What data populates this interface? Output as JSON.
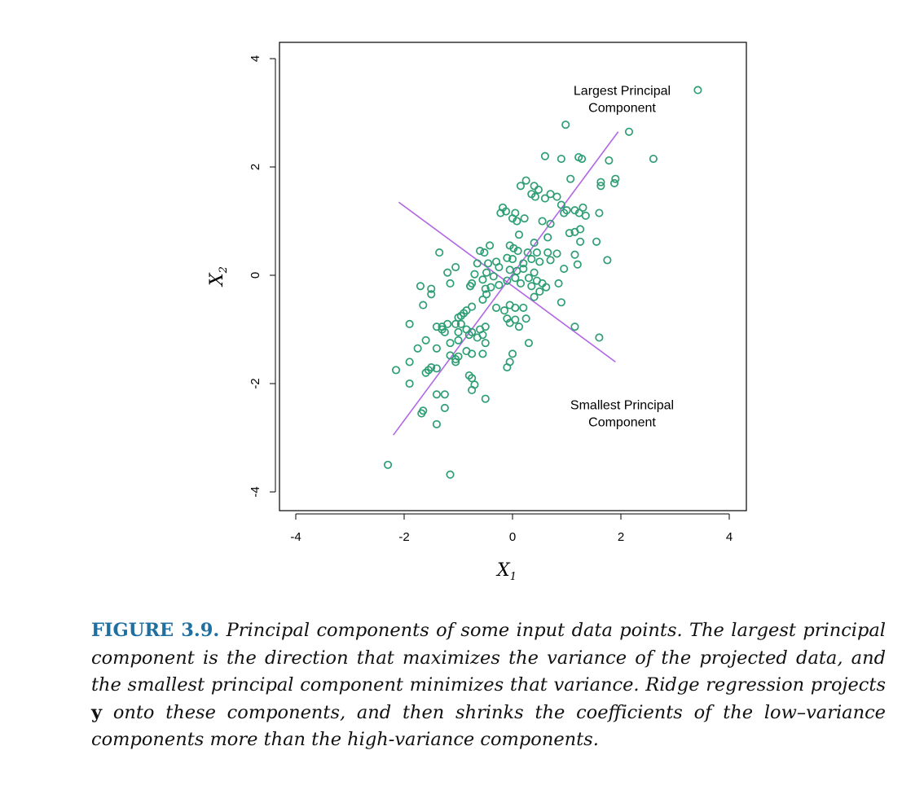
{
  "chart_data": {
    "type": "scatter",
    "xlabel": "X",
    "xlabel_sub": "1",
    "ylabel": "X",
    "ylabel_sub": "2",
    "xlim": [
      -4.3,
      4.3
    ],
    "ylim": [
      -4.4,
      4.3
    ],
    "xticks": [
      "-4",
      "-2",
      "0",
      "2",
      "4"
    ],
    "xtick_values": [
      -4,
      -2,
      0,
      2,
      4
    ],
    "yticks": [
      "-4",
      "-2",
      "0",
      "2",
      "4"
    ],
    "ytick_values": [
      -4,
      -2,
      0,
      2,
      4
    ],
    "point_color": "#2e9e74",
    "line_color": "#b266e6",
    "lines": [
      {
        "name": "Largest Principal Component",
        "x": [
          -2.2,
          1.95
        ],
        "y": [
          -2.95,
          2.65
        ]
      },
      {
        "name": "Smallest Principal Component",
        "x": [
          -2.1,
          1.9
        ],
        "y": [
          1.35,
          -1.6
        ]
      }
    ],
    "annotations": [
      {
        "lines": [
          "Largest Principal",
          "Component"
        ],
        "x": 1.0,
        "y": 3.3
      },
      {
        "lines": [
          "Smallest Principal",
          "Component"
        ],
        "x": 1.0,
        "y": -2.5
      }
    ],
    "points": [
      [
        3.42,
        3.42
      ],
      [
        2.15,
        2.65
      ],
      [
        2.6,
        2.15
      ],
      [
        0.98,
        2.78
      ],
      [
        0.6,
        2.2
      ],
      [
        0.9,
        2.15
      ],
      [
        1.22,
        2.18
      ],
      [
        1.28,
        2.15
      ],
      [
        1.78,
        2.12
      ],
      [
        1.07,
        1.78
      ],
      [
        1.63,
        1.72
      ],
      [
        1.9,
        1.78
      ],
      [
        1.88,
        1.7
      ],
      [
        1.63,
        1.65
      ],
      [
        0.15,
        1.65
      ],
      [
        0.25,
        1.75
      ],
      [
        0.4,
        1.65
      ],
      [
        0.48,
        1.58
      ],
      [
        0.7,
        1.5
      ],
      [
        0.82,
        1.45
      ],
      [
        0.6,
        1.42
      ],
      [
        0.35,
        1.5
      ],
      [
        0.42,
        1.45
      ],
      [
        0.9,
        1.3
      ],
      [
        1.0,
        1.2
      ],
      [
        0.95,
        1.15
      ],
      [
        1.15,
        1.2
      ],
      [
        1.3,
        1.25
      ],
      [
        1.35,
        1.1
      ],
      [
        1.23,
        1.15
      ],
      [
        1.6,
        1.15
      ],
      [
        -0.18,
        1.25
      ],
      [
        -0.22,
        1.15
      ],
      [
        -0.12,
        1.18
      ],
      [
        0.05,
        1.15
      ],
      [
        0.22,
        1.05
      ],
      [
        0.08,
        1.0
      ],
      [
        0.0,
        1.05
      ],
      [
        0.55,
        1.0
      ],
      [
        0.7,
        0.95
      ],
      [
        0.12,
        0.75
      ],
      [
        1.05,
        0.78
      ],
      [
        1.15,
        0.8
      ],
      [
        1.25,
        0.85
      ],
      [
        1.25,
        0.62
      ],
      [
        1.55,
        0.62
      ],
      [
        0.65,
        0.7
      ],
      [
        0.4,
        0.6
      ],
      [
        -0.05,
        0.55
      ],
      [
        -0.42,
        0.55
      ],
      [
        0.02,
        0.5
      ],
      [
        0.1,
        0.45
      ],
      [
        0.28,
        0.42
      ],
      [
        0.45,
        0.42
      ],
      [
        0.65,
        0.42
      ],
      [
        0.82,
        0.4
      ],
      [
        1.15,
        0.38
      ],
      [
        1.75,
        0.28
      ],
      [
        1.2,
        0.2
      ],
      [
        0.95,
        0.12
      ],
      [
        0.7,
        0.28
      ],
      [
        0.5,
        0.25
      ],
      [
        0.35,
        0.3
      ],
      [
        0.2,
        0.22
      ],
      [
        0.0,
        0.3
      ],
      [
        -0.1,
        0.32
      ],
      [
        -0.3,
        0.25
      ],
      [
        -0.45,
        0.22
      ],
      [
        -0.52,
        0.42
      ],
      [
        -0.6,
        0.45
      ],
      [
        -0.65,
        0.22
      ],
      [
        -0.25,
        0.15
      ],
      [
        -0.05,
        0.1
      ],
      [
        0.08,
        0.08
      ],
      [
        0.2,
        0.12
      ],
      [
        0.3,
        -0.05
      ],
      [
        0.4,
        0.05
      ],
      [
        0.45,
        -0.1
      ],
      [
        0.55,
        -0.15
      ],
      [
        0.62,
        -0.22
      ],
      [
        0.85,
        -0.15
      ],
      [
        0.5,
        -0.3
      ],
      [
        0.4,
        -0.4
      ],
      [
        0.35,
        -0.2
      ],
      [
        0.15,
        -0.15
      ],
      [
        0.05,
        -0.05
      ],
      [
        -0.1,
        -0.1
      ],
      [
        -0.25,
        -0.18
      ],
      [
        -0.4,
        -0.22
      ],
      [
        -0.55,
        -0.08
      ],
      [
        -0.7,
        0.02
      ],
      [
        -0.48,
        0.05
      ],
      [
        -0.35,
        -0.02
      ],
      [
        -0.5,
        -0.25
      ],
      [
        -0.48,
        -0.35
      ],
      [
        -0.55,
        -0.45
      ],
      [
        -0.78,
        -0.2
      ],
      [
        -0.75,
        -0.15
      ],
      [
        -0.05,
        -0.55
      ],
      [
        0.05,
        -0.6
      ],
      [
        0.2,
        -0.6
      ],
      [
        -0.15,
        -0.65
      ],
      [
        0.9,
        -0.5
      ],
      [
        -0.75,
        -0.58
      ],
      [
        -0.85,
        -0.65
      ],
      [
        -0.9,
        -0.7
      ],
      [
        -0.95,
        -0.75
      ],
      [
        -1.0,
        -0.78
      ],
      [
        -0.1,
        -0.8
      ],
      [
        0.05,
        -0.82
      ],
      [
        0.25,
        -0.8
      ],
      [
        -0.05,
        -0.88
      ],
      [
        0.12,
        -0.95
      ],
      [
        1.15,
        -0.95
      ],
      [
        -0.5,
        -0.95
      ],
      [
        -0.6,
        -1.0
      ],
      [
        -0.85,
        -1.0
      ],
      [
        -0.75,
        -1.05
      ],
      [
        -0.95,
        -0.9
      ],
      [
        -1.05,
        -0.9
      ],
      [
        -1.2,
        -0.9
      ],
      [
        -1.3,
        -0.95
      ],
      [
        -1.4,
        -0.95
      ],
      [
        -0.55,
        -1.1
      ],
      [
        -0.65,
        -1.15
      ],
      [
        -0.8,
        -1.1
      ],
      [
        -1.0,
        -1.05
      ],
      [
        -1.25,
        -1.05
      ],
      [
        -1.3,
        -1.0
      ],
      [
        -1.0,
        -1.2
      ],
      [
        -1.15,
        -1.25
      ],
      [
        -0.5,
        -1.25
      ],
      [
        -1.4,
        -1.35
      ],
      [
        -0.75,
        -1.45
      ],
      [
        -0.85,
        -1.4
      ],
      [
        -0.55,
        -1.45
      ],
      [
        -1.6,
        -1.2
      ],
      [
        -1.75,
        -1.35
      ],
      [
        -1.15,
        -1.48
      ],
      [
        -1.05,
        -1.55
      ],
      [
        -1.0,
        -1.5
      ],
      [
        -1.05,
        -1.6
      ],
      [
        1.6,
        -1.15
      ],
      [
        0.3,
        -1.25
      ],
      [
        0.0,
        -1.45
      ],
      [
        -0.05,
        -1.6
      ],
      [
        -0.1,
        -1.7
      ],
      [
        -1.4,
        -1.72
      ],
      [
        -1.5,
        -1.7
      ],
      [
        -1.55,
        -1.75
      ],
      [
        -1.6,
        -1.8
      ],
      [
        -1.9,
        -1.6
      ],
      [
        -2.15,
        -1.75
      ],
      [
        -0.8,
        -1.85
      ],
      [
        -0.75,
        -1.9
      ],
      [
        -0.7,
        -2.02
      ],
      [
        -0.75,
        -2.12
      ],
      [
        -1.9,
        -2.0
      ],
      [
        -1.4,
        -2.2
      ],
      [
        -1.25,
        -2.2
      ],
      [
        -0.5,
        -2.28
      ],
      [
        -1.25,
        -2.45
      ],
      [
        -1.65,
        -2.5
      ],
      [
        -1.68,
        -2.55
      ],
      [
        -1.4,
        -2.75
      ],
      [
        -2.3,
        -3.5
      ],
      [
        -1.15,
        -3.68
      ],
      [
        -1.65,
        -0.55
      ],
      [
        -1.5,
        -0.35
      ],
      [
        -1.5,
        -0.25
      ],
      [
        -1.7,
        -0.2
      ],
      [
        -1.15,
        -0.15
      ],
      [
        -1.2,
        0.05
      ],
      [
        -1.05,
        0.15
      ],
      [
        -1.35,
        0.42
      ],
      [
        -0.78,
        -0.2
      ],
      [
        -1.9,
        -0.9
      ],
      [
        -0.3,
        -0.6
      ]
    ]
  },
  "caption": {
    "label": "FIGURE 3.9.",
    "text_before_y": " Principal components of some input data points. The largest principal component is the direction that maximizes the variance of the projected data, and the smallest principal component minimizes that variance. Ridge regression projects ",
    "y_symbol": "y",
    "text_after_y": " onto these components, and then shrinks the coefficients of the low–variance components more than the high-variance components."
  }
}
